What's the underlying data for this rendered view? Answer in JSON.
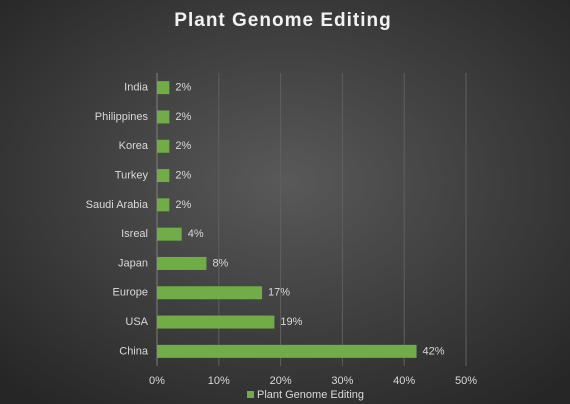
{
  "chart_data": {
    "type": "hbar",
    "title": "Plant Genome Editing",
    "categories": [
      "India",
      "Philippines",
      "Korea",
      "Turkey",
      "Saudi Arabia",
      "Isreal",
      "Japan",
      "Europe",
      "USA",
      "China"
    ],
    "series": [
      {
        "name": "Plant Genome Editing",
        "color": "#70ad47",
        "values": [
          2,
          2,
          2,
          2,
          2,
          4,
          8,
          17,
          19,
          42
        ],
        "value_labels": [
          "2%",
          "2%",
          "2%",
          "2%",
          "2%",
          "4%",
          "8%",
          "17%",
          "19%",
          "42%"
        ]
      }
    ],
    "xlim": [
      0,
      50
    ],
    "xticks": [
      {
        "value": 0,
        "label": "0%"
      },
      {
        "value": 10,
        "label": "10%"
      },
      {
        "value": 20,
        "label": "20%"
      },
      {
        "value": 30,
        "label": "30%"
      },
      {
        "value": 40,
        "label": "40%"
      },
      {
        "value": 50,
        "label": "50%"
      }
    ],
    "grid": true,
    "legend": "bottom"
  }
}
